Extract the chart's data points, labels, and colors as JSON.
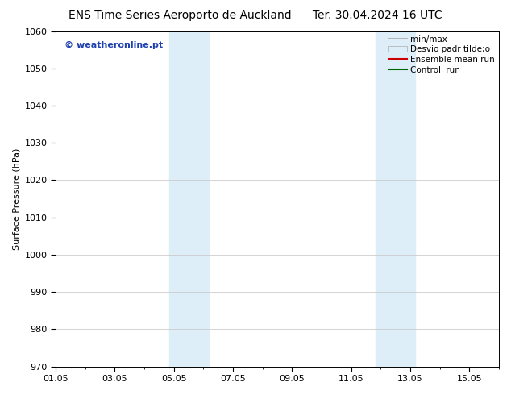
{
  "title_left": "ENS Time Series Aeroporto de Auckland",
  "title_right": "Ter. 30.04.2024 16 UTC",
  "ylabel": "Surface Pressure (hPa)",
  "ylim": [
    970,
    1060
  ],
  "yticks": [
    970,
    980,
    990,
    1000,
    1010,
    1020,
    1030,
    1040,
    1050,
    1060
  ],
  "xlim": [
    0,
    15
  ],
  "xtick_labels": [
    "01.05",
    "03.05",
    "05.05",
    "07.05",
    "09.05",
    "11.05",
    "13.05",
    "15.05"
  ],
  "xtick_positions_days": [
    0,
    2,
    4,
    6,
    8,
    10,
    12,
    14
  ],
  "shaded_bands": [
    {
      "xstart_day": 3.833,
      "xend_day": 5.167
    },
    {
      "xstart_day": 10.833,
      "xend_day": 12.167
    }
  ],
  "band_color": "#ddeef8",
  "watermark_text": "© weatheronline.pt",
  "watermark_color": "#1e40b0",
  "watermark_fontsize": 8,
  "legend_entries": [
    {
      "label": "min/max",
      "color": "#aaaaaa",
      "type": "line",
      "linewidth": 1.2
    },
    {
      "label": "Desvio padr tilde;o",
      "color": "#ddeef8",
      "type": "patch"
    },
    {
      "label": "Ensemble mean run",
      "color": "#cc0000",
      "type": "line",
      "linewidth": 1.5
    },
    {
      "label": "Controll run",
      "color": "#006600",
      "type": "line",
      "linewidth": 1.5
    }
  ],
  "bg_color": "#ffffff",
  "grid_color": "#cccccc",
  "title_fontsize": 10,
  "tick_fontsize": 8,
  "ylabel_fontsize": 8,
  "legend_fontsize": 7.5
}
